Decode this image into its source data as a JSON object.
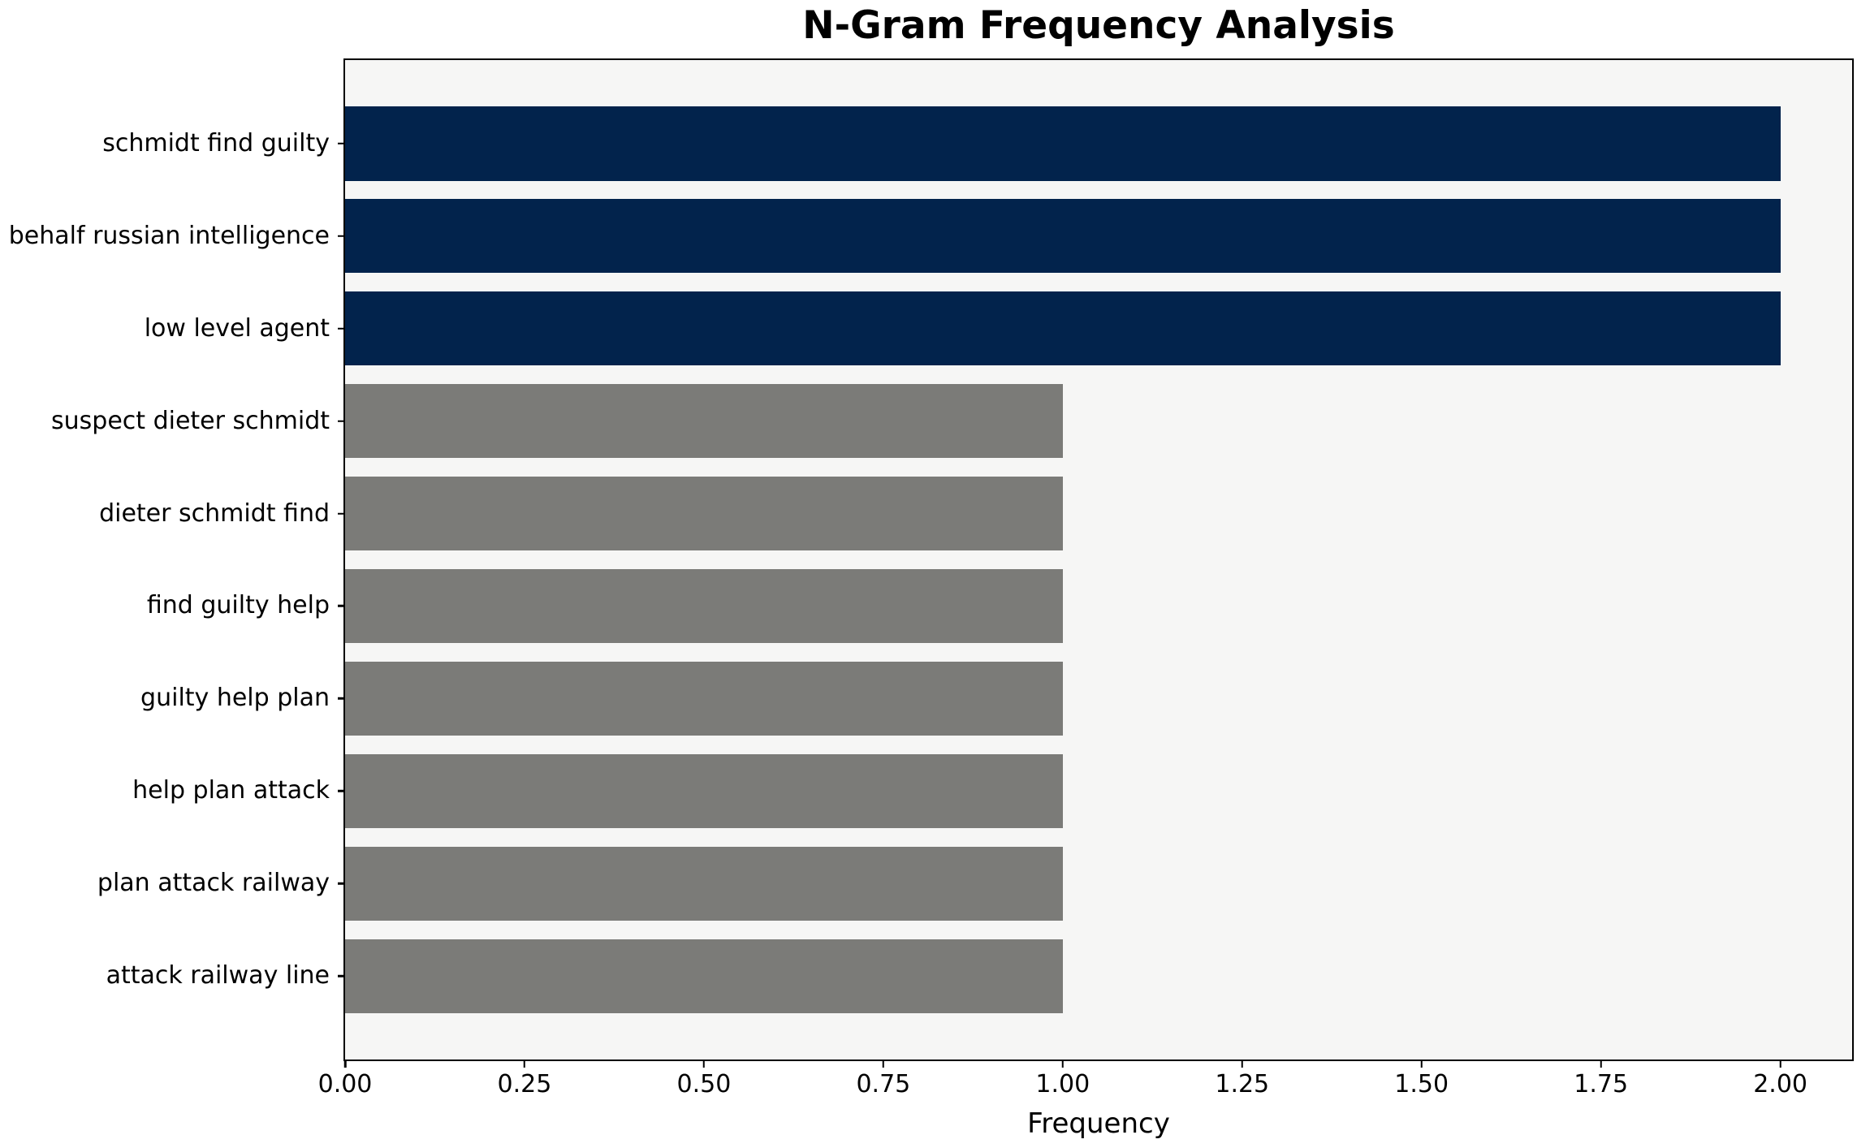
{
  "chart_data": {
    "type": "bar",
    "orientation": "horizontal",
    "title": "N-Gram Frequency Analysis",
    "xlabel": "Frequency",
    "ylabel": "",
    "categories": [
      "schmidt find guilty",
      "behalf russian intelligence",
      "low level agent",
      "suspect dieter schmidt",
      "dieter schmidt find",
      "find guilty help",
      "guilty help plan",
      "help plan attack",
      "plan attack railway",
      "attack railway line"
    ],
    "values": [
      2,
      2,
      2,
      1,
      1,
      1,
      1,
      1,
      1,
      1
    ],
    "bar_colors": [
      "#02234c",
      "#02234c",
      "#02234c",
      "#7b7b78",
      "#7b7b78",
      "#7b7b78",
      "#7b7b78",
      "#7b7b78",
      "#7b7b78",
      "#7b7b78"
    ],
    "xlim": [
      0,
      2.1
    ],
    "xticks": [
      0,
      0.25,
      0.5,
      0.75,
      1.0,
      1.25,
      1.5,
      1.75,
      2.0
    ],
    "xtick_labels": [
      "0.00",
      "0.25",
      "0.50",
      "0.75",
      "1.00",
      "1.25",
      "1.50",
      "1.75",
      "2.00"
    ],
    "grid": false,
    "legend": null,
    "bar_height_frac": 0.8,
    "colors": {
      "highlight": "#02234c",
      "muted": "#7b7b78",
      "plot_background": "#f6f6f5",
      "figure_background": "#ffffff",
      "spine": "#000000",
      "text": "#000000"
    }
  }
}
